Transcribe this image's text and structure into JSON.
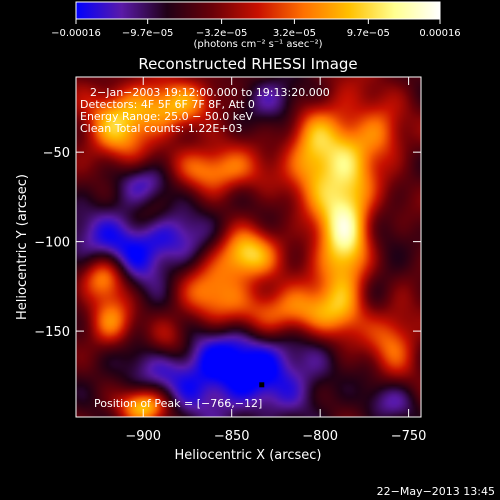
{
  "chart_data": {
    "type": "heatmap",
    "title": "Reconstructed RHESSI Image",
    "xlabel": "Heliocentric X (arcsec)",
    "ylabel": "Heliocentric Y (arcsec)",
    "xlim": [
      -938,
      -743
    ],
    "ylim": [
      -198,
      -8
    ],
    "x_ticks": [
      -900,
      -850,
      -800,
      -750
    ],
    "x_tick_labels": [
      "−900",
      "−850",
      "−800",
      "−750"
    ],
    "y_ticks": [
      -50,
      -100,
      -150
    ],
    "y_tick_labels": [
      "−50",
      "−100",
      "−150"
    ],
    "colorbar": {
      "label": "(photons cm⁻² s⁻¹ asec⁻²)",
      "range": [
        -0.00016,
        0.00016
      ],
      "tick_values": [
        -0.00016,
        -9.7e-05,
        -3.2e-05,
        3.2e-05,
        9.7e-05,
        0.00016
      ],
      "tick_labels": [
        "−0.00016",
        "−9.7e−05",
        "−3.2e−05",
        "3.2e−05",
        "9.7e−05",
        "0.00016"
      ],
      "colors": [
        "#0000ff",
        "#5a1aa8",
        "#200016",
        "#6a0008",
        "#c81000",
        "#ff7000",
        "#ffc000",
        "#ffff90",
        "#ffffff"
      ]
    },
    "annotations": [
      " 2−Jan−2003 19:12:00.000 to 19:13:20.000",
      "Detectors: 4F 5F 6F 7F 8F, Att 0",
      "Energy Range: 25.0 − 50.0 keV",
      "Clean     Total counts: 1.22E+03"
    ],
    "peak_label": "Position of Peak = [−766,−12]",
    "marker": {
      "x": -833,
      "y": -180
    },
    "blobs": [
      {
        "x": -785,
        "y": -90,
        "sx": 12,
        "sy": 40,
        "amp": 1.5
      },
      {
        "x": -805,
        "y": -50,
        "sx": 10,
        "sy": 18,
        "amp": 0.9
      },
      {
        "x": -818,
        "y": -140,
        "sx": 22,
        "sy": 10,
        "amp": 1.0
      },
      {
        "x": -860,
        "y": -60,
        "sx": 18,
        "sy": 9,
        "amp": 0.9
      },
      {
        "x": -885,
        "y": -25,
        "sx": 25,
        "sy": 10,
        "amp": 1.0
      },
      {
        "x": -915,
        "y": -40,
        "sx": 12,
        "sy": 12,
        "amp": 0.8
      },
      {
        "x": -842,
        "y": -107,
        "sx": 12,
        "sy": 10,
        "amp": 1.2
      },
      {
        "x": -863,
        "y": -128,
        "sx": 14,
        "sy": 14,
        "amp": 0.9
      },
      {
        "x": -922,
        "y": -120,
        "sx": 9,
        "sy": 9,
        "amp": 1.0
      },
      {
        "x": -918,
        "y": -145,
        "sx": 9,
        "sy": 10,
        "amp": 0.9
      },
      {
        "x": -885,
        "y": -155,
        "sx": 10,
        "sy": 9,
        "amp": 0.6
      },
      {
        "x": -760,
        "y": -155,
        "sx": 10,
        "sy": 14,
        "amp": 0.8
      },
      {
        "x": -765,
        "y": -40,
        "sx": 9,
        "sy": 12,
        "amp": 0.6
      },
      {
        "x": -900,
        "y": -192,
        "sx": 10,
        "sy": 7,
        "amp": 1.2
      },
      {
        "x": -895,
        "y": -85,
        "sx": 10,
        "sy": 8,
        "amp": 0.5
      },
      {
        "x": -900,
        "y": -100,
        "sx": 30,
        "sy": 18,
        "amp": -0.9
      },
      {
        "x": -850,
        "y": -170,
        "sx": 40,
        "sy": 20,
        "amp": -1.0
      },
      {
        "x": -825,
        "y": -20,
        "sx": 15,
        "sy": 10,
        "amp": -0.6
      },
      {
        "x": -770,
        "y": -115,
        "sx": 10,
        "sy": 30,
        "amp": -0.5
      },
      {
        "x": -860,
        "y": -30,
        "sx": 12,
        "sy": 8,
        "amp": -0.4
      },
      {
        "x": -895,
        "y": -65,
        "sx": 12,
        "sy": 8,
        "amp": -0.5
      },
      {
        "x": -760,
        "y": -190,
        "sx": 12,
        "sy": 8,
        "amp": -0.4
      }
    ]
  },
  "footer": {
    "timestamp": "22−May−2013 13:45"
  }
}
